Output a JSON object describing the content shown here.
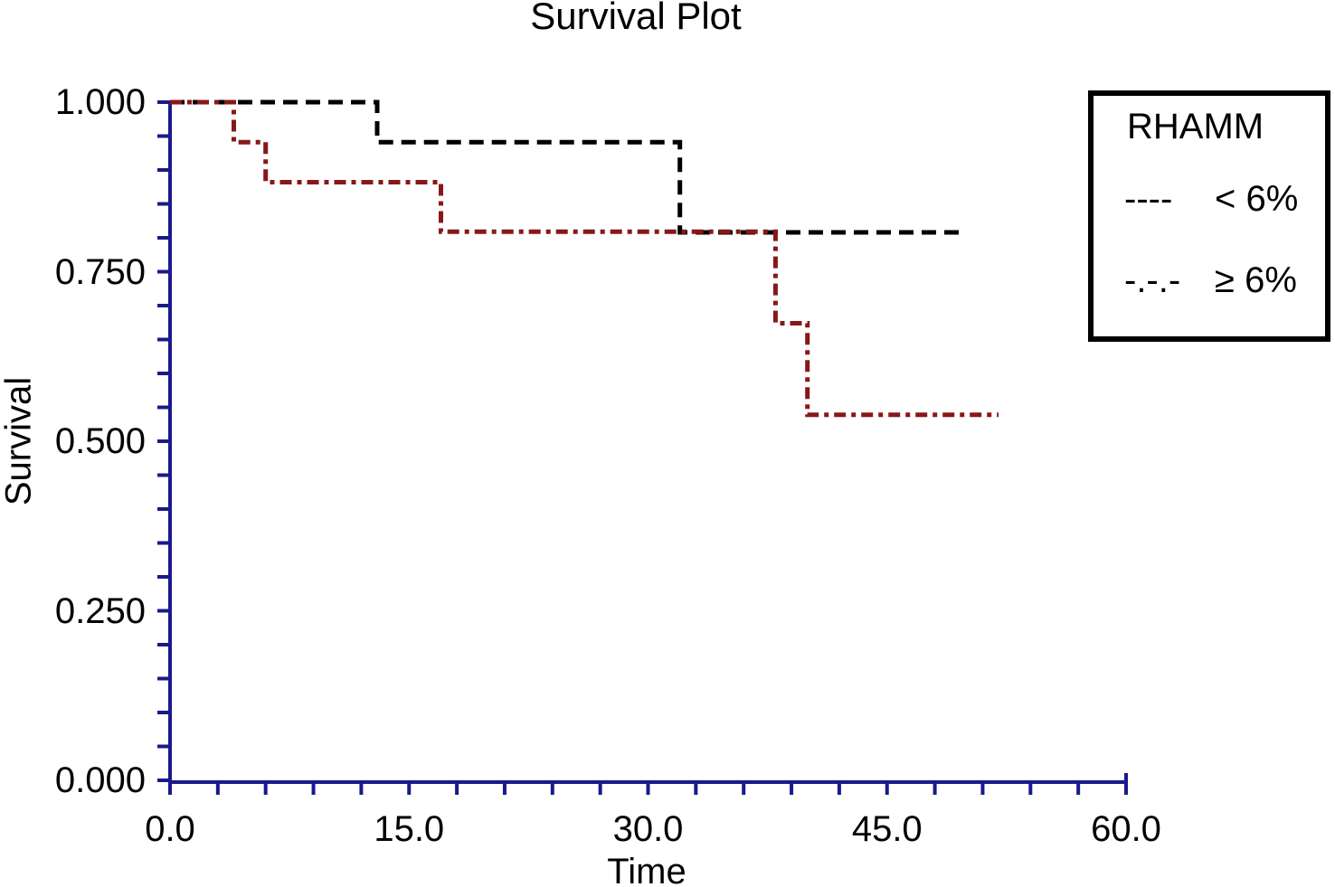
{
  "figure": {
    "background": "#FFFFFF"
  },
  "chart_data": {
    "type": "line",
    "subtype": "kaplan-meier-step",
    "title": "Survival Plot",
    "xlabel": "Time",
    "ylabel": "Survival",
    "xlim": [
      0,
      60
    ],
    "ylim": [
      0,
      1
    ],
    "grid": false,
    "axis_color": "#1A1A8C",
    "x_tick_values": [
      0,
      15,
      30,
      45,
      60
    ],
    "x_tick_labels": [
      "0.0",
      "15.0",
      "30.0",
      "45.0",
      "60.0"
    ],
    "x_minor_tick_step": 3,
    "y_tick_values": [
      1.0,
      0.75,
      0.5,
      0.25,
      0.0
    ],
    "y_tick_labels": [
      "1.000",
      "0.750",
      "0.500",
      "0.250",
      "0.000"
    ],
    "y_minor_tick_step": 0.05,
    "legend": {
      "title": "RHAMM",
      "position": "top-right",
      "entries": [
        {
          "label": "< 6%",
          "sample": "----",
          "style": "dashed",
          "color": "#000000"
        },
        {
          "label": "≥ 6%",
          "sample": "-.-.-",
          "style": "dash-dot",
          "color": "#87181A"
        }
      ]
    },
    "series": [
      {
        "name": "RHAMM < 6%",
        "color": "#000000",
        "dash": [
          16,
          9
        ],
        "points": [
          [
            0,
            1.0
          ],
          [
            13,
            1.0
          ],
          [
            13,
            0.941
          ],
          [
            32,
            0.941
          ],
          [
            32,
            0.808
          ],
          [
            50,
            0.808
          ]
        ]
      },
      {
        "name": "RHAMM ≥ 6%",
        "color": "#87181A",
        "dash": [
          13,
          6,
          5,
          6
        ],
        "points": [
          [
            0,
            1.0
          ],
          [
            4,
            1.0
          ],
          [
            4,
            0.941
          ],
          [
            6,
            0.941
          ],
          [
            6,
            0.882
          ],
          [
            17,
            0.882
          ],
          [
            17,
            0.809
          ],
          [
            38,
            0.809
          ],
          [
            38,
            0.674
          ],
          [
            40,
            0.674
          ],
          [
            40,
            0.539
          ],
          [
            52,
            0.539
          ]
        ]
      }
    ]
  }
}
